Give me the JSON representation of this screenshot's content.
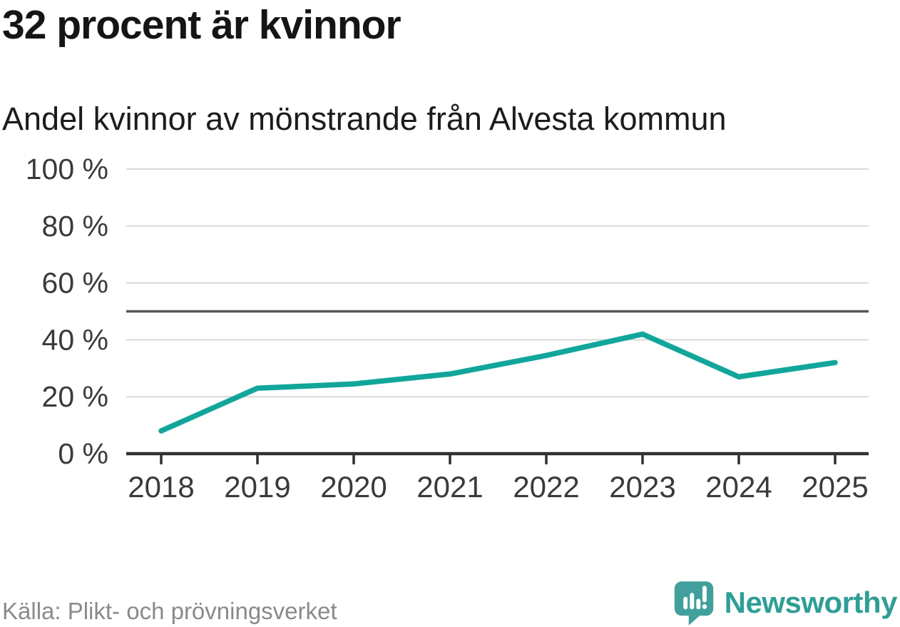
{
  "header": {
    "title": "32 procent är kvinnor",
    "subtitle": "Andel kvinnor av mönstrande från Alvesta kommun"
  },
  "footer": {
    "source": "Källa: Plikt- och prövningsverket",
    "brand": "Newsworthy"
  },
  "colors": {
    "line": "#12a69b",
    "gridline": "#d9d9d9",
    "reference_line": "#555555",
    "axis": "#303030",
    "axis_label": "#3a3a3a",
    "title_text": "#151515",
    "source_text": "#8a8a8a",
    "brand_teal": "#2f9e96",
    "logo_icon": "#41a09b"
  },
  "chart_data": {
    "type": "line",
    "title": "32 procent är kvinnor",
    "subtitle": "Andel kvinnor av mönstrande från Alvesta kommun",
    "categories": [
      "2018",
      "2019",
      "2020",
      "2021",
      "2022",
      "2023",
      "2024",
      "2025"
    ],
    "series": [
      {
        "name": "Andel kvinnor av mönstrande",
        "values": [
          8,
          23,
          24.5,
          28,
          34.5,
          42,
          27,
          32
        ]
      }
    ],
    "xlabel": "",
    "ylabel": "",
    "ylim": [
      0,
      100
    ],
    "yticks": [
      0,
      20,
      40,
      60,
      80,
      100
    ],
    "ytick_suffix": " %",
    "reference_line": 50,
    "grid": "horizontal",
    "legend": "none"
  }
}
